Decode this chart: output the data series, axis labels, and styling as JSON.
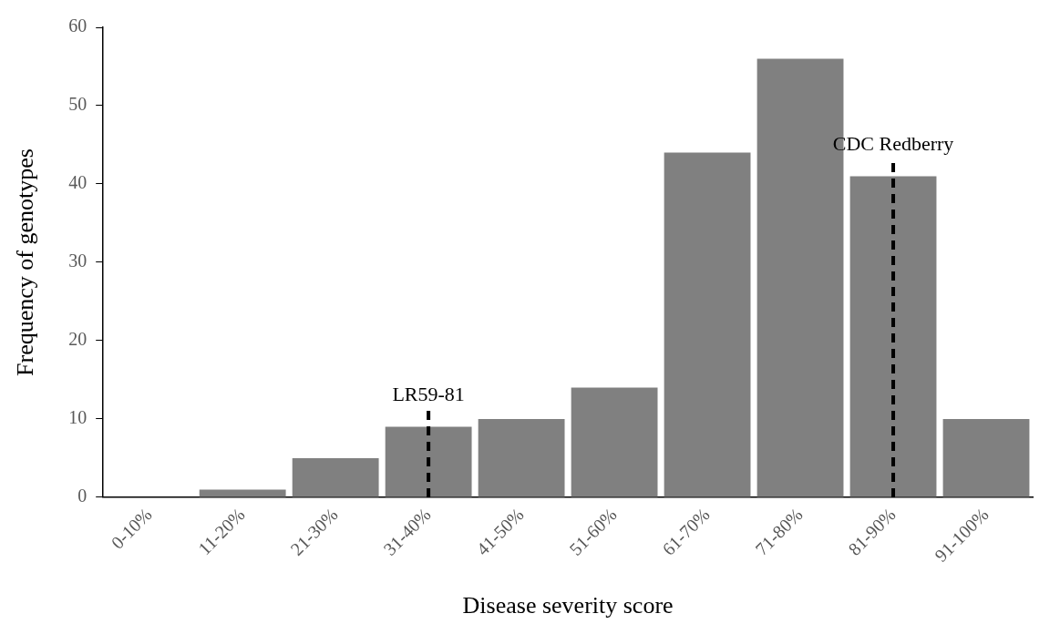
{
  "chart_data": {
    "type": "bar",
    "xlabel": "Disease severity score",
    "ylabel": "Frequency of genotypes",
    "categories": [
      "0-10%",
      "11-20%",
      "21-30%",
      "31-40%",
      "41-50%",
      "51-60%",
      "61-70%",
      "71-80%",
      "81-90%",
      "91-100%"
    ],
    "values": [
      0,
      1,
      5,
      9,
      10,
      14,
      44,
      56,
      41,
      10
    ],
    "color": "#808080",
    "ylim": [
      0,
      60
    ],
    "yticks": [
      0,
      10,
      20,
      30,
      40,
      50,
      60
    ],
    "grid": false,
    "legend": false,
    "ref_lines": [
      {
        "axis": "x",
        "value": "31-40%",
        "label": "LR59-81",
        "color": "#000000",
        "line_style": "dashed"
      },
      {
        "axis": "x",
        "value": "81-90%",
        "label": "CDC Redberry",
        "color": "#000000",
        "line_style": "dashed"
      }
    ]
  }
}
